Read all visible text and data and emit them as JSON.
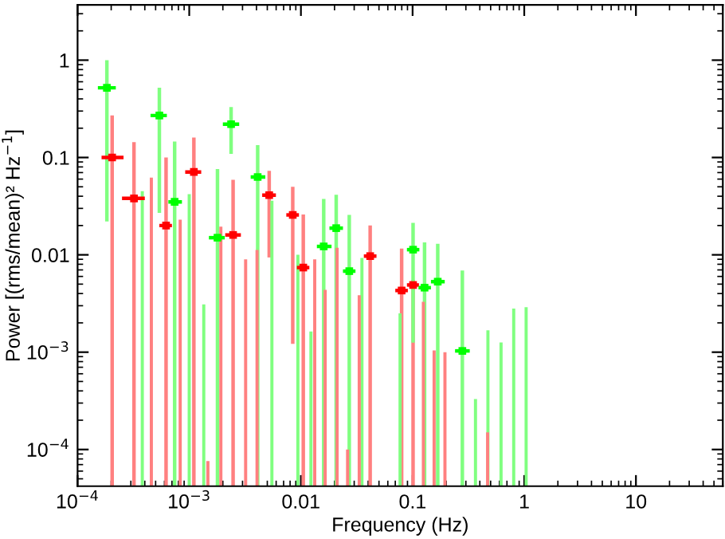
{
  "chart_data": {
    "type": "scatter",
    "xlabel": "Frequency (Hz)",
    "ylabel": "Power [(rms/mean)² Hz$^{−1}$]",
    "log": "xy",
    "grid": false,
    "legend": false,
    "marker": "square",
    "xlim": [
      0.0001,
      60
    ],
    "ylim": [
      4.2e-05,
      3.7
    ],
    "xticks": [
      {
        "value": 0.0001,
        "label": "10$^{−4}$"
      },
      {
        "value": 0.001,
        "label": "10$^{−3}$"
      },
      0.01,
      0.1,
      1,
      10
    ],
    "yticks": [
      {
        "value": 0.0001,
        "label": "10$^{−4}$"
      },
      {
        "value": 0.001,
        "label": "10$^{−3}$"
      },
      0.01,
      0.1,
      1
    ],
    "series": [
      {
        "color": "#ff0000",
        "x": [
          0.000204,
          0.00032,
          0.00062,
          0.0011,
          0.00247,
          0.0052,
          0.00845,
          0.0105,
          0.0417,
          0.0798,
          0.101
        ],
        "values": [
          0.1,
          0.038,
          0.02,
          0.071,
          0.016,
          0.041,
          0.0257,
          0.0074,
          0.0097,
          0.0043,
          0.0049
        ],
        "errors": [
          [
            4.2e-05,
            0.27
          ],
          [
            4.2e-05,
            0.144
          ],
          [
            4.2e-05,
            0.1
          ],
          [
            4.2e-05,
            0.16
          ],
          [
            4.2e-05,
            0.059
          ],
          [
            0.0094,
            0.073
          ],
          [
            0.00122,
            0.05
          ],
          [
            4.2e-05,
            0.026
          ],
          [
            4.2e-05,
            0.02
          ],
          [
            4.2e-05,
            0.0116
          ],
          [
            4.2e-05,
            0.0055
          ]
        ],
        "xerrors": [
          [
            0.000164,
            0.000258
          ],
          [
            0.00025,
            0.0004
          ],
          [
            0.00054,
            0.0007
          ],
          [
            0.00092,
            0.00128
          ],
          [
            0.0021,
            0.0029
          ],
          [
            0.0045,
            0.00597
          ],
          [
            0.0074,
            0.0096
          ],
          [
            0.0092,
            0.0119
          ],
          [
            0.0366,
            0.0475
          ],
          [
            0.07,
            0.0907
          ],
          [
            0.089,
            0.114
          ]
        ]
      },
      {
        "color": "#00ff00",
        "x": [
          0.000183,
          0.00054,
          0.00074,
          0.00179,
          0.00237,
          0.0041,
          0.016,
          0.0207,
          0.0271,
          0.101,
          0.128,
          0.168,
          0.279
        ],
        "values": [
          0.52,
          0.27,
          0.035,
          0.015,
          0.22,
          0.063,
          0.0122,
          0.0188,
          0.0068,
          0.0113,
          0.0046,
          0.0053,
          0.00103
        ],
        "errors": [
          [
            0.022,
            1.0
          ],
          [
            0.027,
            0.52
          ],
          [
            4.2e-05,
            0.146
          ],
          [
            4.2e-05,
            0.076
          ],
          [
            0.109,
            0.33
          ],
          [
            4.2e-05,
            0.134
          ],
          [
            4.2e-05,
            0.0375
          ],
          [
            4.2e-05,
            0.0414
          ],
          [
            4.2e-05,
            0.0257
          ],
          [
            0.00125,
            0.0213
          ],
          [
            4.2e-05,
            0.0134
          ],
          [
            4.2e-05,
            0.013
          ],
          [
            4.2e-05,
            0.0069
          ]
        ],
        "xerrors": [
          [
            0.000152,
            0.00022
          ],
          [
            0.00045,
            0.00063
          ],
          [
            0.00065,
            0.00086
          ],
          [
            0.0015,
            0.00208
          ],
          [
            0.002,
            0.0028
          ],
          [
            0.00355,
            0.0048
          ],
          [
            0.0139,
            0.0188
          ],
          [
            0.018,
            0.0238
          ],
          [
            0.0238,
            0.0308
          ],
          [
            0.089,
            0.115
          ],
          [
            0.113,
            0.146
          ],
          [
            0.146,
            0.194
          ],
          [
            0.24,
            0.325
          ]
        ]
      },
      {
        "type": "bar",
        "color": "#ff8080",
        "x": [
          0.000458,
          0.00083,
          0.00147,
          0.00192,
          0.0032,
          0.00405,
          0.0133,
          0.0165,
          0.0211,
          0.0262,
          0.0333,
          0.125,
          0.156,
          0.195,
          0.47
        ],
        "base": [
          4.2e-05,
          4.2e-05,
          4.2e-05,
          4.2e-05,
          4.2e-05,
          4.2e-05,
          4.2e-05,
          4.2e-05,
          4.2e-05,
          4.2e-05,
          4.2e-05,
          4.2e-05,
          4.2e-05,
          4.2e-05,
          4.2e-05
        ],
        "values": [
          0.061958,
          0.022958,
          3.4e-05,
          0.019458,
          0.008958,
          0.011158,
          0.008958,
          0.004318,
          0.011758,
          5.8e-05,
          0.003808,
          0.003258,
          0.000998,
          0.000958,
          0.000108
        ]
      },
      {
        "type": "bar",
        "color": "#80ff80",
        "x": [
          0.00038,
          0.001,
          0.00135,
          0.0055,
          0.0094,
          0.0123,
          0.0352,
          0.0773,
          0.366,
          0.473,
          0.62,
          0.805,
          1.04
        ],
        "base": [
          4.2e-05,
          4.2e-05,
          4.2e-05,
          4.2e-05,
          4.2e-05,
          4.2e-05,
          4.2e-05,
          4.2e-05,
          4.2e-05,
          4.2e-05,
          4.2e-05,
          4.2e-05,
          4.2e-05
        ],
        "values": [
          0.044958,
          0.041958,
          0.003058,
          0.035958,
          0.009958,
          0.001588,
          0.009258,
          0.002458,
          0.000288,
          0.001638,
          0.001218,
          0.002758,
          0.002858
        ]
      }
    ]
  }
}
